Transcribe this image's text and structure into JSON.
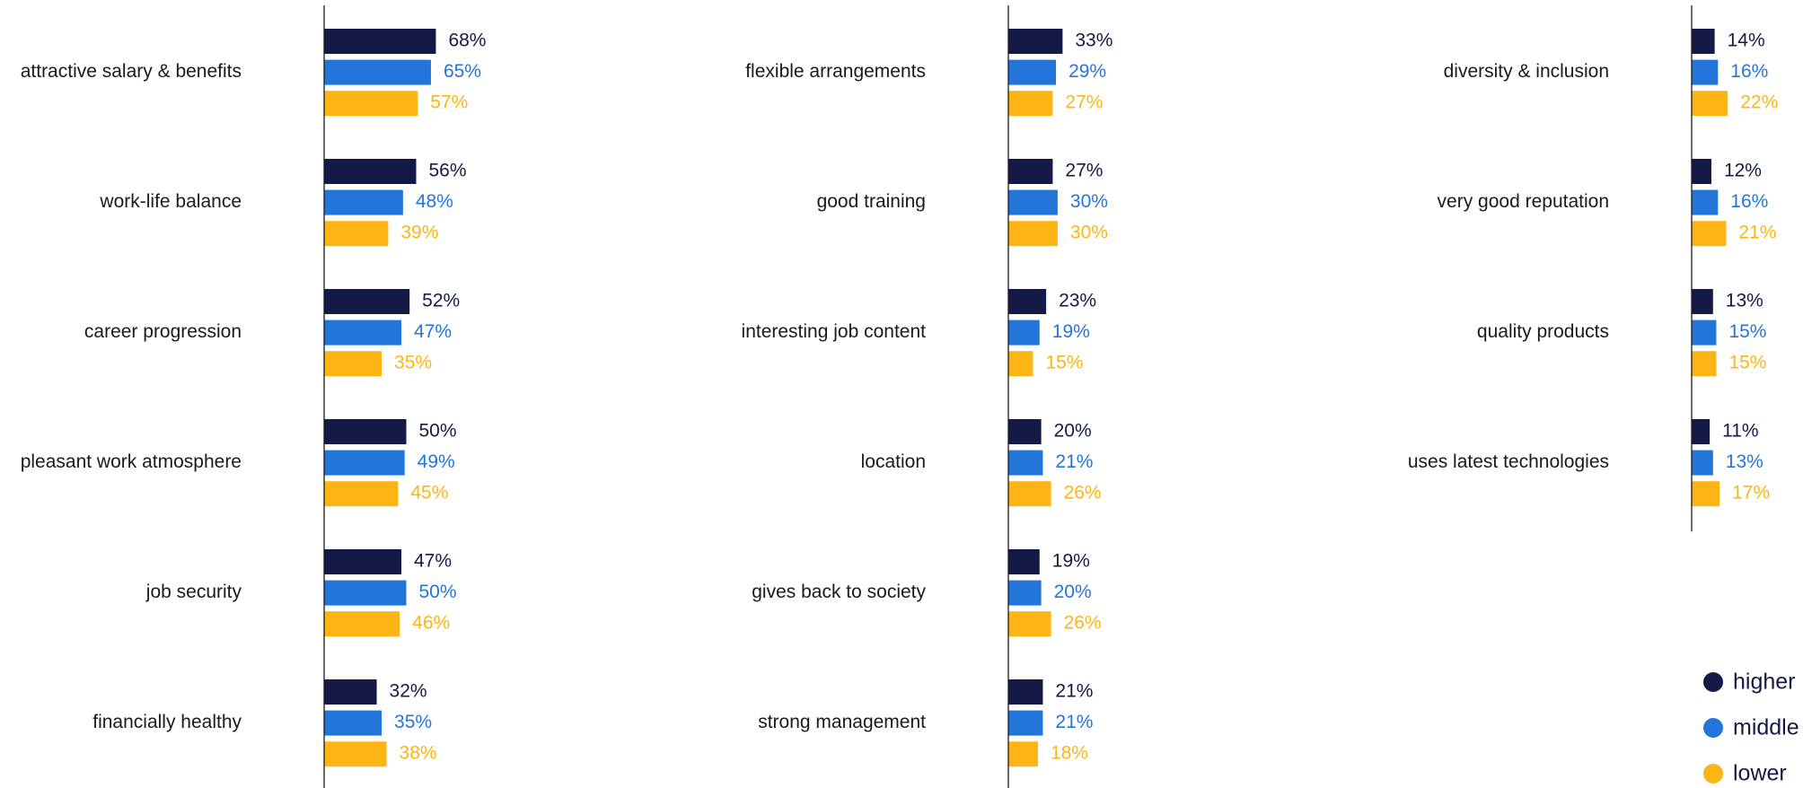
{
  "chart_data": {
    "type": "bar",
    "orientation": "horizontal",
    "categories": [
      "attractive salary & benefits",
      "work-life balance",
      "career progression",
      "pleasant work atmosphere",
      "job security",
      "financially healthy",
      "flexible arrangements",
      "good training",
      "interesting job content",
      "location",
      "gives back to society",
      "strong management",
      "diversity & inclusion",
      "very good reputation",
      "quality products",
      "uses latest technologies"
    ],
    "series": [
      {
        "name": "higher",
        "color": "#141a45",
        "values": [
          68,
          56,
          52,
          50,
          47,
          32,
          33,
          27,
          23,
          20,
          19,
          21,
          14,
          12,
          13,
          11
        ],
        "value_labels": [
          "68%",
          "56%",
          "52%",
          "50%",
          "47%",
          "32%",
          "33%",
          "27%",
          "23%",
          "20%",
          "19%",
          "21%",
          "14%",
          "12%",
          "13%",
          "11%"
        ]
      },
      {
        "name": "middle",
        "color": "#2475d9",
        "values": [
          65,
          48,
          47,
          49,
          50,
          35,
          29,
          30,
          19,
          21,
          20,
          21,
          16,
          16,
          15,
          13
        ],
        "value_labels": [
          "65%",
          "48%",
          "47%",
          "49%",
          "50%",
          "35%",
          "29%",
          "30%",
          "19%",
          "21%",
          "20%",
          "21%",
          "16%",
          "16%",
          "15%",
          "13%"
        ]
      },
      {
        "name": "lower",
        "color": "#fdb515",
        "values": [
          57,
          39,
          35,
          45,
          46,
          38,
          27,
          30,
          15,
          26,
          26,
          18,
          22,
          21,
          15,
          17
        ],
        "value_labels": [
          "57%",
          "39%",
          "35%",
          "45%",
          "46%",
          "38%",
          "27%",
          "30%",
          "15%",
          "26%",
          "26%",
          "18%",
          "22%",
          "21%",
          "15%",
          "17%"
        ]
      }
    ],
    "legend": "bottom-right"
  }
}
